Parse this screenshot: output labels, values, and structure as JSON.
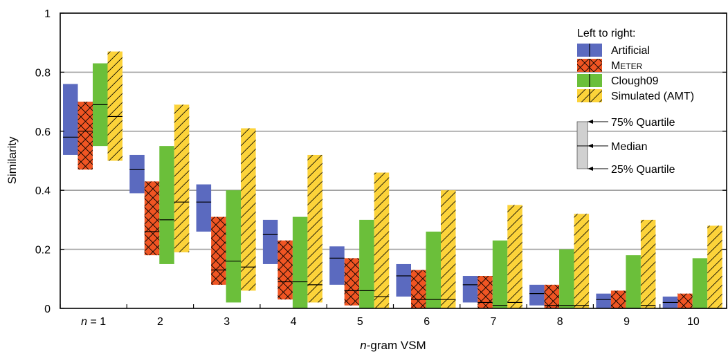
{
  "chart_data": {
    "type": "box",
    "title": "",
    "xlabel": "n-gram VSM",
    "xlabel_italic_part": "n",
    "xlabel_rest": "-gram VSM",
    "ylabel": "Similarity",
    "ylim": [
      0,
      1
    ],
    "yticks": [
      "0",
      "0.2",
      "0.4",
      "0.6",
      "0.8",
      "1"
    ],
    "ytick_values": [
      0,
      0.2,
      0.4,
      0.6,
      0.8,
      1
    ],
    "gridlines": [
      0.2,
      0.4,
      0.6,
      0.8
    ],
    "categories": [
      "n = 1",
      "2",
      "3",
      "4",
      "5",
      "6",
      "7",
      "8",
      "9",
      "10"
    ],
    "first_category_italic": "n",
    "first_category_rest": " = 1",
    "legend": {
      "title": "Left to right:",
      "placement": "top-right"
    },
    "quartile_key": {
      "upper": "75% Quartile",
      "median": "Median",
      "lower": "25% Quartile"
    },
    "series": [
      {
        "name": "Artificial",
        "color": "#5b6abf",
        "pattern": "none",
        "q1": [
          0.52,
          0.39,
          0.26,
          0.15,
          0.08,
          0.04,
          0.02,
          0.01,
          0.0,
          0.0
        ],
        "median": [
          0.58,
          0.47,
          0.36,
          0.25,
          0.17,
          0.11,
          0.08,
          0.05,
          0.03,
          0.02
        ],
        "q3": [
          0.76,
          0.52,
          0.42,
          0.3,
          0.21,
          0.15,
          0.11,
          0.08,
          0.05,
          0.04
        ]
      },
      {
        "name": "Meter",
        "color": "#f05523",
        "pattern": "crosshatch",
        "q1": [
          0.47,
          0.18,
          0.08,
          0.03,
          0.01,
          0.0,
          0.0,
          0.0,
          0.0,
          0.0
        ],
        "median": [
          0.6,
          0.26,
          0.13,
          0.09,
          0.06,
          0.03,
          0.02,
          0.01,
          0.0,
          0.0
        ],
        "q3": [
          0.7,
          0.43,
          0.31,
          0.23,
          0.17,
          0.13,
          0.11,
          0.08,
          0.06,
          0.05
        ]
      },
      {
        "name": "Clough09",
        "color": "#6bbf3a",
        "pattern": "none",
        "q1": [
          0.55,
          0.15,
          0.02,
          0.0,
          0.0,
          0.0,
          0.0,
          0.0,
          0.0,
          0.0
        ],
        "median": [
          0.69,
          0.3,
          0.16,
          0.09,
          0.06,
          0.03,
          0.01,
          0.01,
          0.0,
          0.0
        ],
        "q3": [
          0.83,
          0.55,
          0.4,
          0.31,
          0.3,
          0.26,
          0.23,
          0.2,
          0.18,
          0.17
        ]
      },
      {
        "name": "Simulated (AMT)",
        "color": "#fcd33a",
        "pattern": "diagonal",
        "q1": [
          0.5,
          0.19,
          0.06,
          0.02,
          0.0,
          0.0,
          0.0,
          0.0,
          0.0,
          0.0
        ],
        "median": [
          0.65,
          0.36,
          0.14,
          0.08,
          0.04,
          0.03,
          0.02,
          0.01,
          0.01,
          0.0
        ],
        "q3": [
          0.87,
          0.69,
          0.61,
          0.52,
          0.46,
          0.4,
          0.35,
          0.32,
          0.3,
          0.28
        ]
      }
    ]
  }
}
